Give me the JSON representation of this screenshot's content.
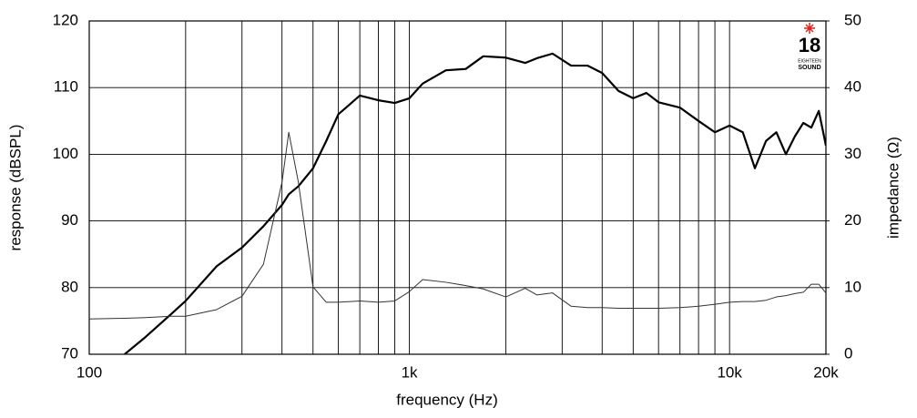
{
  "chart_data": {
    "type": "line",
    "xlabel": "frequency (Hz)",
    "ylabel": "response (dBSPL)",
    "y2label": "impedance (Ω)",
    "xscale": "log",
    "xlim": [
      100,
      20000
    ],
    "xticks": [
      100,
      {
        "value": 1000,
        "label": "1k"
      },
      {
        "value": 10000,
        "label": "10k"
      },
      {
        "value": 20000,
        "label": "20k"
      }
    ],
    "xminorgrid": [
      200,
      300,
      400,
      500,
      600,
      700,
      800,
      900,
      2000,
      3000,
      4000,
      5000,
      6000,
      7000,
      8000,
      9000
    ],
    "ylim": [
      70,
      120
    ],
    "yticks": [
      70,
      80,
      90,
      100,
      110,
      120
    ],
    "y2lim": [
      0,
      50
    ],
    "y2ticks": [
      0,
      10,
      20,
      30,
      40,
      50
    ],
    "grid": true,
    "x": [
      100,
      129,
      150,
      180,
      200,
      250,
      300,
      350,
      400,
      420,
      450,
      500,
      550,
      600,
      700,
      800,
      900,
      1000,
      1100,
      1300,
      1500,
      1700,
      2000,
      2300,
      2500,
      2800,
      3200,
      3600,
      4000,
      4500,
      5000,
      5500,
      6000,
      7000,
      8000,
      9000,
      10000,
      11000,
      12000,
      13000,
      14000,
      15000,
      16000,
      17000,
      18000,
      19000,
      20000
    ],
    "series": [
      {
        "color": "#000000",
        "values": [
          null,
          70,
          72.6,
          76,
          78,
          83.2,
          86,
          89.2,
          92.4,
          94,
          95.2,
          97.9,
          102,
          106,
          108.8,
          108.1,
          107.7,
          108.4,
          110.6,
          112.6,
          112.8,
          114.7,
          114.5,
          113.7,
          114.4,
          115.1,
          113.3,
          113.3,
          112.2,
          109.5,
          108.4,
          109.2,
          107.8,
          107,
          105,
          103.3,
          104.3,
          103.3,
          97.9,
          102,
          103.3,
          100,
          102.7,
          104.7,
          104,
          106.5,
          101.3
        ]
      },
      {
        "color": "#333333",
        "axis": "y2",
        "values": [
          5.3,
          5.4,
          5.5,
          5.7,
          5.7,
          6.7,
          8.7,
          13.5,
          25.8,
          33.3,
          25.8,
          10.1,
          7.8,
          7.8,
          8.0,
          7.8,
          8.0,
          9.4,
          11.2,
          10.8,
          10.3,
          9.8,
          8.6,
          9.9,
          8.9,
          9.2,
          7.2,
          7.0,
          7.0,
          6.9,
          6.9,
          6.9,
          6.9,
          7.0,
          7.2,
          7.5,
          7.8,
          7.9,
          7.9,
          8.1,
          8.6,
          8.8,
          9.1,
          9.3,
          10.5,
          10.5,
          9.2
        ]
      }
    ]
  },
  "logo": {
    "number": "18",
    "top": "EIGHTEEN",
    "bottom": "SOUND"
  }
}
